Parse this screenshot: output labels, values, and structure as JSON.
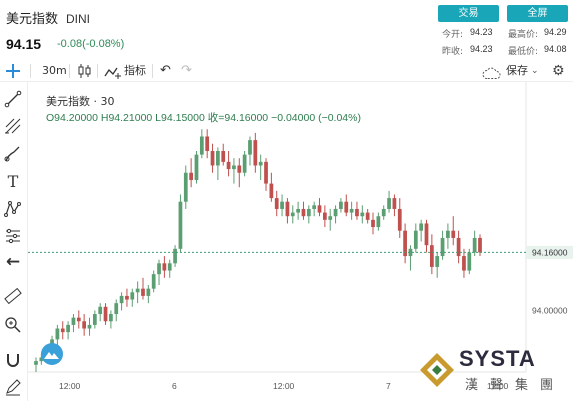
{
  "header": {
    "title": "美元指数",
    "code": "DINI",
    "price": "94.15",
    "change": "-0.08(-0.08%)",
    "trade_btn": "交易",
    "full_btn": "全屏",
    "quote": {
      "open_label": "今开:",
      "open": "94.23",
      "high_label": "最高价:",
      "high": "94.29",
      "prev_label": "昨收:",
      "prev": "94.23",
      "low_label": "最低价:",
      "low": "94.08"
    }
  },
  "toolbar": {
    "interval": "30m",
    "indicators_label": "指标",
    "save_label": "保存"
  },
  "legend": {
    "name": "美元指数",
    "interval": "30",
    "ohlc": "O94.20000  H94.21000  L94.15000  收=94.16000  −0.04000  (−0.04%)"
  },
  "watermark": {
    "brand": "SYSTA",
    "cn": "漢聲集團"
  },
  "chart_data": {
    "type": "candlestick",
    "x_ticks": [
      "12:00",
      "6",
      "12:00",
      "7",
      "12:00"
    ],
    "y_ticks": [
      "94.00000"
    ],
    "last_price": "94.16000",
    "ylim": [
      93.83,
      94.52
    ],
    "colors": {
      "up": "#5b9e72",
      "down": "#c0504d",
      "line": "#3f9d73"
    },
    "candles": [
      [
        93.85,
        93.87,
        93.83,
        93.86
      ],
      [
        93.86,
        93.88,
        93.85,
        93.87
      ],
      [
        93.87,
        93.9,
        93.86,
        93.89
      ],
      [
        93.89,
        93.93,
        93.88,
        93.92
      ],
      [
        93.92,
        93.96,
        93.9,
        93.95
      ],
      [
        93.95,
        93.97,
        93.92,
        93.94
      ],
      [
        93.94,
        93.97,
        93.92,
        93.96
      ],
      [
        93.96,
        93.99,
        93.94,
        93.98
      ],
      [
        93.98,
        94.0,
        93.95,
        93.97
      ],
      [
        93.97,
        93.99,
        93.93,
        93.95
      ],
      [
        93.95,
        93.98,
        93.93,
        93.96
      ],
      [
        93.96,
        94.0,
        93.95,
        93.99
      ],
      [
        93.99,
        94.02,
        93.97,
        94.01
      ],
      [
        94.01,
        94.02,
        93.96,
        93.97
      ],
      [
        93.97,
        94.0,
        93.95,
        93.99
      ],
      [
        93.99,
        94.03,
        93.97,
        94.02
      ],
      [
        94.02,
        94.05,
        94.0,
        94.04
      ],
      [
        94.04,
        94.06,
        94.01,
        94.03
      ],
      [
        94.03,
        94.06,
        94.01,
        94.05
      ],
      [
        94.05,
        94.08,
        94.02,
        94.06
      ],
      [
        94.06,
        94.09,
        94.03,
        94.04
      ],
      [
        94.04,
        94.07,
        94.02,
        94.06
      ],
      [
        94.06,
        94.11,
        94.05,
        94.1
      ],
      [
        94.1,
        94.14,
        94.07,
        94.13
      ],
      [
        94.13,
        94.15,
        94.09,
        94.11
      ],
      [
        94.11,
        94.14,
        94.09,
        94.13
      ],
      [
        94.13,
        94.18,
        94.12,
        94.17
      ],
      [
        94.17,
        94.32,
        94.16,
        94.3
      ],
      [
        94.3,
        94.4,
        94.28,
        94.38
      ],
      [
        94.38,
        94.42,
        94.34,
        94.36
      ],
      [
        94.36,
        94.44,
        94.35,
        94.43
      ],
      [
        94.43,
        94.5,
        94.42,
        94.48
      ],
      [
        94.48,
        94.5,
        94.42,
        94.44
      ],
      [
        94.44,
        94.46,
        94.38,
        94.4
      ],
      [
        94.4,
        94.45,
        94.36,
        94.44
      ],
      [
        94.44,
        94.46,
        94.4,
        94.41
      ],
      [
        94.41,
        94.44,
        94.37,
        94.39
      ],
      [
        94.39,
        94.42,
        94.35,
        94.4
      ],
      [
        94.4,
        94.42,
        94.34,
        94.38
      ],
      [
        94.38,
        94.44,
        94.37,
        94.43
      ],
      [
        94.43,
        94.48,
        94.4,
        94.47
      ],
      [
        94.47,
        94.49,
        94.38,
        94.4
      ],
      [
        94.4,
        94.43,
        94.36,
        94.41
      ],
      [
        94.41,
        94.42,
        94.33,
        94.35
      ],
      [
        94.35,
        94.38,
        94.3,
        94.31
      ],
      [
        94.31,
        94.33,
        94.26,
        94.28
      ],
      [
        94.28,
        94.32,
        94.26,
        94.3
      ],
      [
        94.3,
        94.31,
        94.24,
        94.26
      ],
      [
        94.26,
        94.29,
        94.24,
        94.27
      ],
      [
        94.27,
        94.3,
        94.25,
        94.28
      ],
      [
        94.28,
        94.3,
        94.25,
        94.26
      ],
      [
        94.26,
        94.29,
        94.24,
        94.28
      ],
      [
        94.28,
        94.3,
        94.26,
        94.29
      ],
      [
        94.29,
        94.31,
        94.26,
        94.27
      ],
      [
        94.27,
        94.29,
        94.23,
        94.25
      ],
      [
        94.25,
        94.28,
        94.22,
        94.26
      ],
      [
        94.26,
        94.29,
        94.24,
        94.28
      ],
      [
        94.28,
        94.31,
        94.27,
        94.3
      ],
      [
        94.3,
        94.32,
        94.26,
        94.27
      ],
      [
        94.27,
        94.3,
        94.25,
        94.28
      ],
      [
        94.28,
        94.3,
        94.25,
        94.26
      ],
      [
        94.26,
        94.29,
        94.24,
        94.27
      ],
      [
        94.27,
        94.28,
        94.24,
        94.25
      ],
      [
        94.25,
        94.27,
        94.21,
        94.23
      ],
      [
        94.23,
        94.27,
        94.22,
        94.26
      ],
      [
        94.26,
        94.29,
        94.25,
        94.28
      ],
      [
        94.28,
        94.33,
        94.27,
        94.31
      ],
      [
        94.31,
        94.32,
        94.26,
        94.28
      ],
      [
        94.28,
        94.31,
        94.2,
        94.22
      ],
      [
        94.22,
        94.24,
        94.13,
        94.15
      ],
      [
        94.15,
        94.18,
        94.11,
        94.17
      ],
      [
        94.17,
        94.24,
        94.16,
        94.22
      ],
      [
        94.22,
        94.25,
        94.19,
        94.24
      ],
      [
        94.24,
        94.25,
        94.16,
        94.18
      ],
      [
        94.18,
        94.21,
        94.1,
        94.12
      ],
      [
        94.12,
        94.16,
        94.09,
        94.15
      ],
      [
        94.15,
        94.22,
        94.14,
        94.2
      ],
      [
        94.2,
        94.24,
        94.17,
        94.22
      ],
      [
        94.22,
        94.26,
        94.18,
        94.2
      ],
      [
        94.2,
        94.22,
        94.13,
        94.15
      ],
      [
        94.15,
        94.17,
        94.09,
        94.11
      ],
      [
        94.11,
        94.17,
        94.1,
        94.16
      ],
      [
        94.16,
        94.22,
        94.15,
        94.2
      ],
      [
        94.2,
        94.21,
        94.15,
        94.16
      ]
    ]
  }
}
